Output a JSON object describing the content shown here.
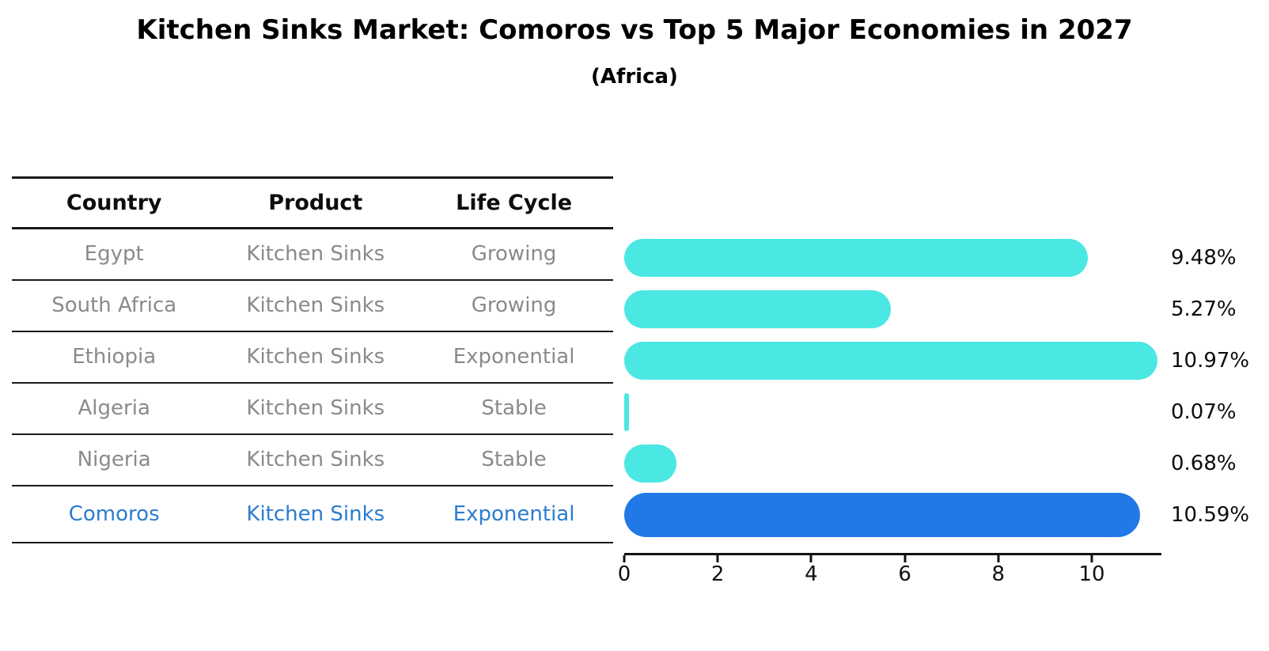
{
  "title": "Kitchen Sinks Market: Comoros vs Top 5 Major Economies in 2027",
  "subtitle": "(Africa)",
  "table": {
    "headers": [
      "Country",
      "Product",
      "Life Cycle"
    ],
    "rows": [
      {
        "cells": [
          "Egypt",
          "Kitchen Sinks",
          "Growing"
        ],
        "highlight": false
      },
      {
        "cells": [
          "South Africa",
          "Kitchen Sinks",
          "Growing"
        ],
        "highlight": false
      },
      {
        "cells": [
          "Ethiopia",
          "Kitchen Sinks",
          "Exponential"
        ],
        "highlight": false
      },
      {
        "cells": [
          "Algeria",
          "Kitchen Sinks",
          "Stable"
        ],
        "highlight": false
      },
      {
        "cells": [
          "Nigeria",
          "Kitchen Sinks",
          "Stable"
        ],
        "highlight": false
      },
      {
        "cells": [
          "Comoros",
          "Kitchen Sinks",
          "Exponential"
        ],
        "highlight": true
      }
    ]
  },
  "chart_data": {
    "type": "bar",
    "orientation": "horizontal",
    "title": "Kitchen Sinks Market: Comoros vs Top 5 Major Economies in 2027",
    "subtitle": "(Africa)",
    "categories": [
      "Egypt",
      "South Africa",
      "Ethiopia",
      "Algeria",
      "Nigeria",
      "Comoros"
    ],
    "values": [
      9.48,
      5.27,
      10.97,
      0.07,
      0.68,
      10.59
    ],
    "value_labels": [
      "9.48%",
      "5.27%",
      "10.97%",
      "0.07%",
      "0.68%",
      "10.59%"
    ],
    "x_ticks": [
      0,
      2,
      4,
      6,
      8,
      10
    ],
    "x_tick_labels": [
      "0",
      "2",
      "4",
      "6",
      "8",
      "10"
    ],
    "xlim": [
      0,
      11.5
    ],
    "grid": "off",
    "legend": "none",
    "highlight_index": 5,
    "bar_color": "#4be7e3",
    "highlight_bar_color": "#2079e6",
    "highlight_text_color": "#2b7cd0",
    "row_text_color": "#8a8a8a",
    "label_color": "#0d0d0d"
  }
}
